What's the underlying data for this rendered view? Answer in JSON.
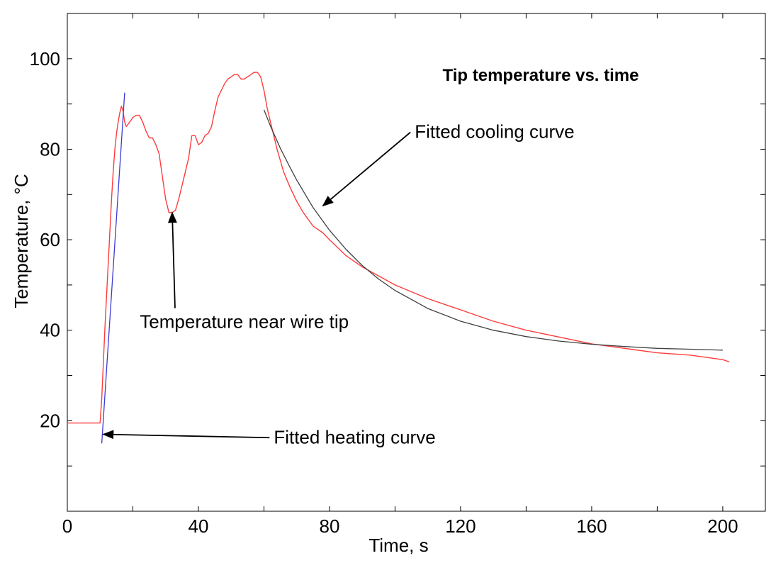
{
  "chart_data": {
    "type": "line",
    "title": "Tip temperature vs. time",
    "xlabel": "Time, s",
    "ylabel": "Temperature, °C",
    "xlim": [
      0,
      213
    ],
    "ylim": [
      0,
      110
    ],
    "x_ticks": [
      0,
      40,
      80,
      120,
      160,
      200
    ],
    "y_ticks": [
      20,
      40,
      60,
      80,
      100
    ],
    "x_minor_step": 20,
    "y_minor_step": 10,
    "grid": false,
    "series": [
      {
        "name": "Temperature near wire tip",
        "color": "#ff3b3b",
        "x": [
          0,
          6,
          10,
          10.5,
          11,
          11.5,
          12,
          12.5,
          13,
          13.5,
          14,
          14.5,
          15,
          15.5,
          16,
          16.5,
          17,
          17.5,
          18,
          18.5,
          19,
          20,
          21,
          22,
          23,
          24,
          25,
          26,
          27,
          28,
          29,
          30,
          31,
          32,
          33,
          34,
          35,
          36,
          37,
          38,
          39,
          40,
          41,
          42,
          43,
          44,
          45,
          46,
          47,
          48,
          49,
          50,
          51,
          52,
          53,
          54,
          55,
          56,
          57,
          58,
          59,
          60,
          61,
          62,
          63,
          64,
          65,
          66,
          68,
          70,
          72,
          75,
          78,
          80,
          85,
          90,
          95,
          100,
          110,
          120,
          130,
          140,
          150,
          160,
          170,
          180,
          190,
          200,
          202
        ],
        "y": [
          19.5,
          19.5,
          19.5,
          25,
          33,
          41,
          48,
          55,
          62,
          69,
          75,
          80,
          83.5,
          86,
          88,
          89.5,
          88.5,
          86,
          85,
          85.5,
          86,
          87,
          87.5,
          87.5,
          86,
          84,
          82.5,
          82.5,
          81,
          79,
          74,
          69,
          66,
          66,
          66.5,
          69,
          72,
          75,
          78,
          83,
          83,
          81,
          81.5,
          83,
          83.5,
          85,
          88.5,
          91.5,
          93,
          94.5,
          95.5,
          96,
          96.5,
          96.5,
          95.5,
          95.5,
          96,
          96.5,
          97,
          97,
          96,
          93,
          89,
          86,
          83,
          80,
          77.5,
          75,
          71.5,
          68.5,
          66,
          63,
          61.5,
          60,
          56.5,
          54,
          52,
          50,
          47,
          44.5,
          42,
          40,
          38.5,
          37,
          36,
          35,
          34.5,
          33.5,
          33
        ]
      },
      {
        "name": "Fitted heating curve",
        "color": "#3a3ad6",
        "x": [
          10.5,
          17.5
        ],
        "y": [
          15,
          92.5
        ]
      },
      {
        "name": "Fitted cooling curve",
        "color": "#404040",
        "model": "exponential decay",
        "x": [
          60,
          62,
          65,
          68,
          70,
          75,
          80,
          85,
          90,
          95,
          100,
          110,
          120,
          130,
          140,
          150,
          160,
          170,
          180,
          190,
          200
        ],
        "y": [
          88.7,
          85.1,
          80.2,
          75.9,
          73.2,
          67.1,
          62.1,
          57.9,
          54.3,
          51.3,
          48.8,
          44.8,
          42.0,
          40.0,
          38.6,
          37.6,
          36.9,
          36.4,
          36.0,
          35.8,
          35.6
        ]
      }
    ],
    "annotations": [
      {
        "text": "Temperature near wire tip",
        "arrow_to": [
          32,
          66
        ],
        "text_at": [
          54,
          40.5
        ]
      },
      {
        "text": "Fitted heating curve",
        "arrow_to": [
          11,
          17
        ],
        "text_at": [
          63,
          15
        ]
      },
      {
        "text": "Fitted cooling curve",
        "arrow_to": [
          78,
          67.5
        ],
        "text_at": [
          106,
          82.5
        ]
      }
    ]
  }
}
